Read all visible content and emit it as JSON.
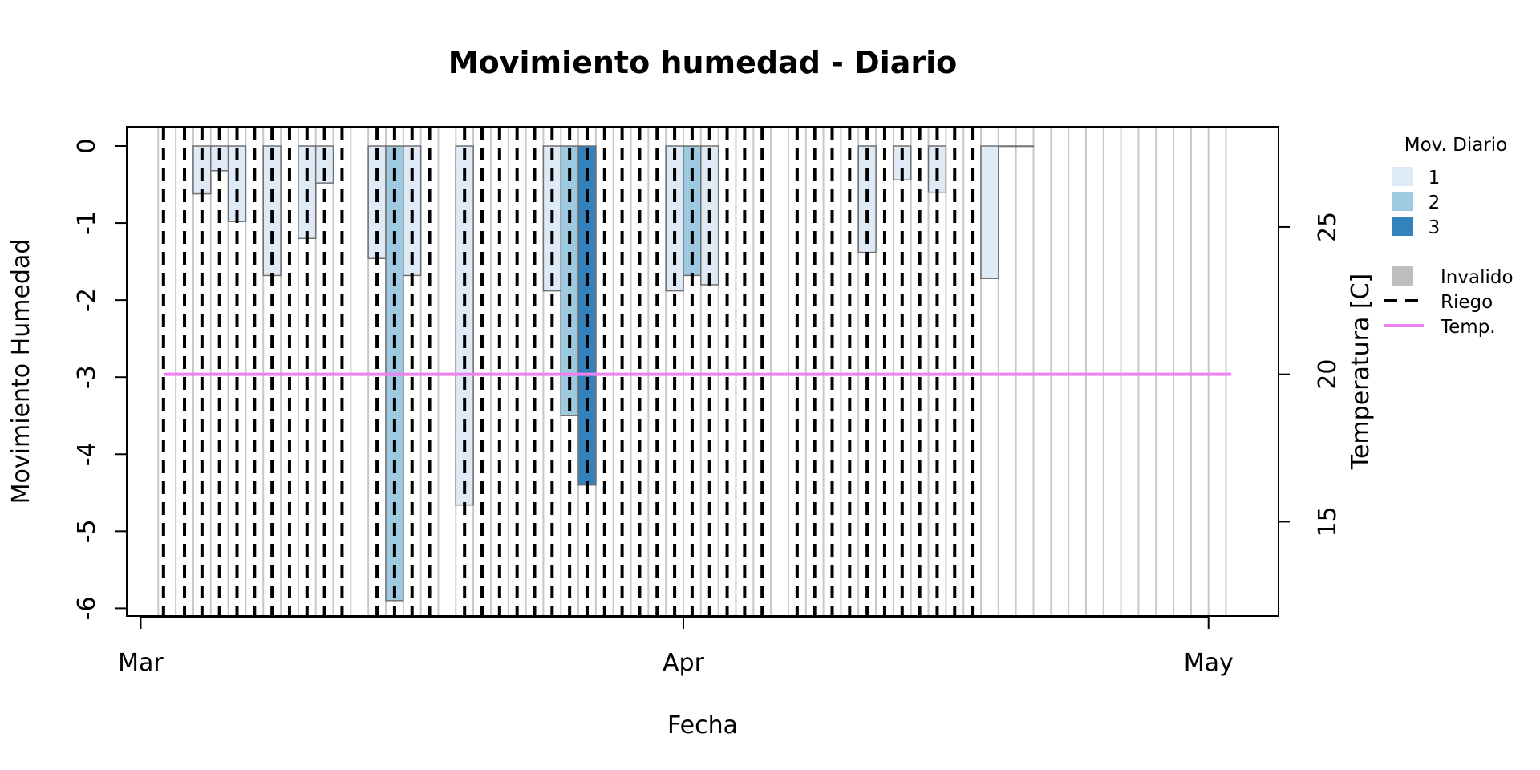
{
  "chart_data": {
    "type": "bar",
    "title": "Movimiento humedad - Diario",
    "xlabel": "Fecha",
    "ylabel": "Movimiento Humedad",
    "y2label": "Temperatura [C]",
    "ylim": [
      -6.1,
      0.25
    ],
    "y2lim": [
      11.8,
      28.4
    ],
    "xlim_days": [
      -0.8,
      65.0
    ],
    "yticks": [
      0,
      -1,
      -2,
      -3,
      -4,
      -5,
      -6
    ],
    "y2ticks": [
      25,
      20,
      15
    ],
    "xticks": [
      {
        "day": 0,
        "label": "Mar"
      },
      {
        "day": 31,
        "label": "Apr"
      },
      {
        "day": 61,
        "label": "May"
      }
    ],
    "grid_days": [
      1,
      2,
      3,
      4,
      5,
      6,
      7,
      8,
      9,
      10,
      11,
      12,
      13,
      14,
      15,
      16,
      17,
      18,
      19,
      20,
      21,
      22,
      23,
      24,
      25,
      26,
      27,
      28,
      29,
      30,
      31,
      32,
      33,
      34,
      35,
      36,
      37,
      38,
      39,
      40,
      41,
      42,
      43,
      44,
      45,
      46,
      47,
      48,
      49,
      50,
      51,
      52,
      53,
      54,
      55,
      56,
      57,
      58,
      59,
      60,
      61,
      62
    ],
    "irrigation_days": [
      1.3,
      2.5,
      3.5,
      4.5,
      5.5,
      6.5,
      7.5,
      8.5,
      9.5,
      10.5,
      11.5,
      13.5,
      14.5,
      15.5,
      16.5,
      18.5,
      19.5,
      20.5,
      21.5,
      22.5,
      23.5,
      24.5,
      25.5,
      26.5,
      27.5,
      28.5,
      29.5,
      30.5,
      31.5,
      32.5,
      33.5,
      34.5,
      35.5,
      37.5,
      38.5,
      39.5,
      40.5,
      41.5,
      42.5,
      43.5,
      44.5,
      45.5,
      46.5,
      47.5
    ],
    "bars": [
      {
        "day": 4,
        "value": -0.62,
        "category": 1
      },
      {
        "day": 5,
        "value": -0.32,
        "category": 1
      },
      {
        "day": 6,
        "value": -0.98,
        "category": 1
      },
      {
        "day": 8,
        "value": -1.68,
        "category": 1
      },
      {
        "day": 10,
        "value": -1.2,
        "category": 1
      },
      {
        "day": 11,
        "value": -0.48,
        "category": 1
      },
      {
        "day": 14,
        "value": -1.46,
        "category": 1
      },
      {
        "day": 15,
        "value": -5.9,
        "category": 2
      },
      {
        "day": 16,
        "value": -1.68,
        "category": 1
      },
      {
        "day": 19,
        "value": -4.66,
        "category": 1
      },
      {
        "day": 24,
        "value": -1.88,
        "category": 1
      },
      {
        "day": 25,
        "value": -3.5,
        "category": 2
      },
      {
        "day": 26,
        "value": -4.4,
        "category": 3
      },
      {
        "day": 31,
        "value": -1.88,
        "category": 1
      },
      {
        "day": 32,
        "value": -1.68,
        "category": 2
      },
      {
        "day": 33,
        "value": -1.8,
        "category": 1
      },
      {
        "day": 42,
        "value": -1.38,
        "category": 1
      },
      {
        "day": 44,
        "value": -0.44,
        "category": 1
      },
      {
        "day": 46,
        "value": -0.6,
        "category": 1
      },
      {
        "day": 49,
        "value": -1.72,
        "category": 1
      },
      {
        "day": 50,
        "value": 0,
        "category": 0
      },
      {
        "day": 51,
        "value": 0,
        "category": 0
      }
    ],
    "temperature": {
      "x_start": 1.3,
      "x_end": 62.3,
      "value": 20
    },
    "legend": {
      "title": "Mov. Diario",
      "position": "right",
      "categories": [
        {
          "label": "1",
          "color": "#deebf7"
        },
        {
          "label": "2",
          "color": "#9ecae1"
        },
        {
          "label": "3",
          "color": "#3182bd"
        }
      ],
      "extra": [
        {
          "label": "Invalido",
          "kind": "box",
          "color": "#bebebe"
        },
        {
          "label": "Riego",
          "kind": "dashed",
          "color": "#000000"
        },
        {
          "label": "Temp.",
          "kind": "line",
          "color": "#ee82ee"
        }
      ]
    }
  }
}
